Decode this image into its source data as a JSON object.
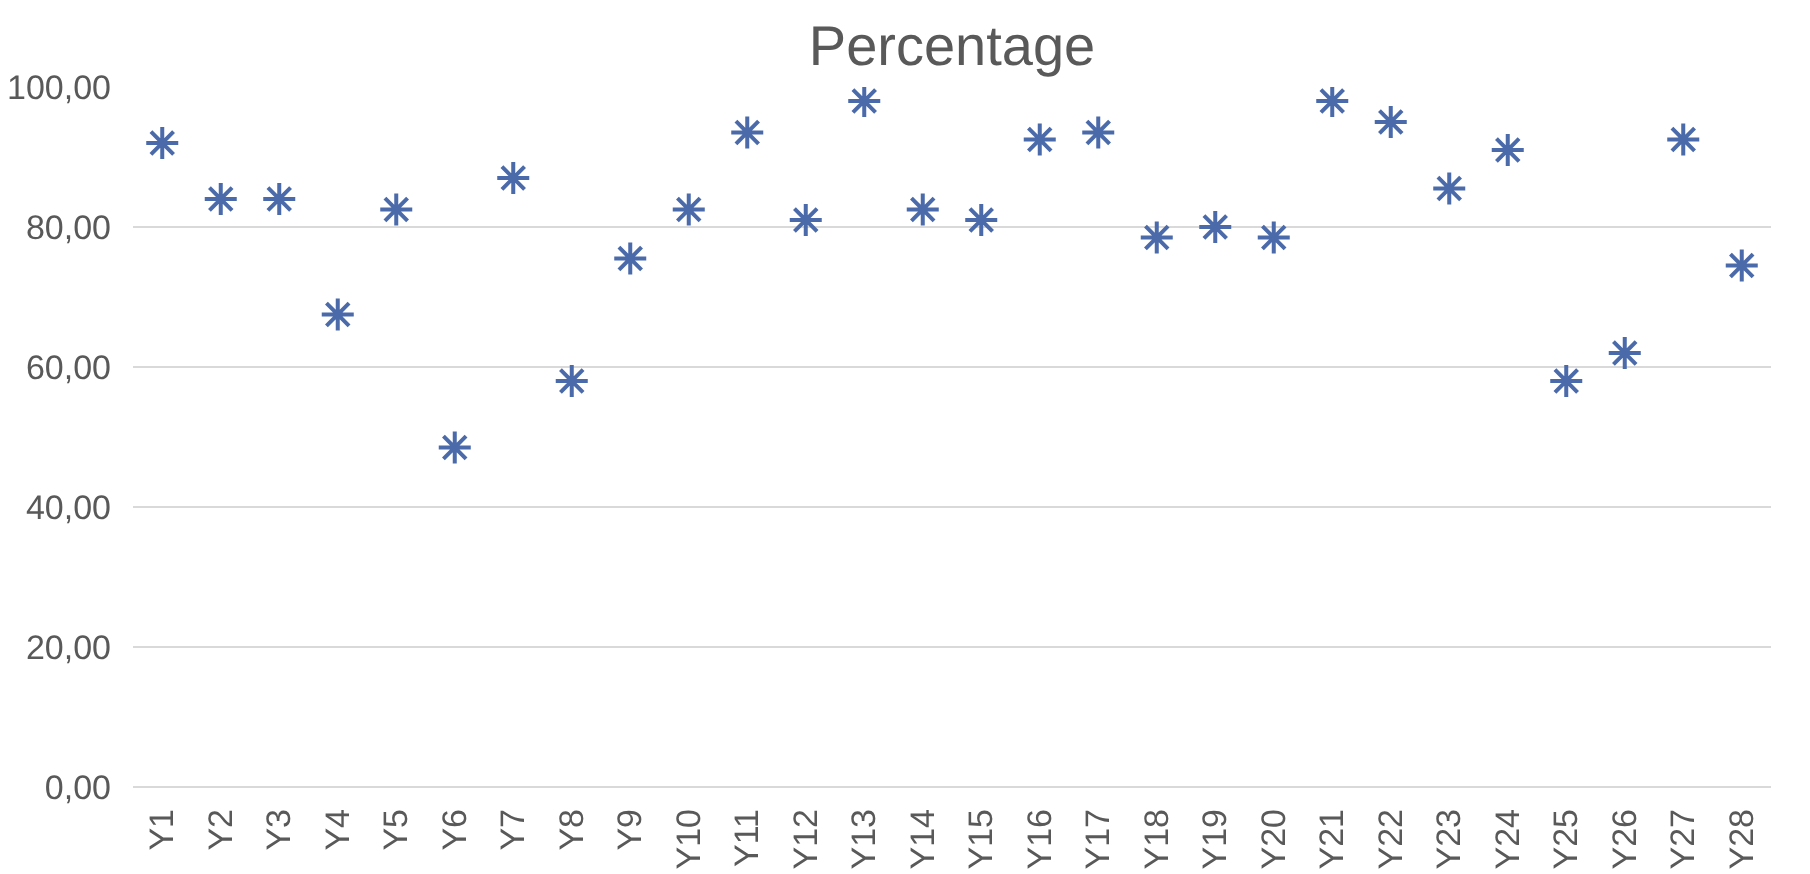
{
  "chart_data": {
    "type": "scatter",
    "title": "Percentage",
    "categories": [
      "Y1",
      "Y2",
      "Y3",
      "Y4",
      "Y5",
      "Y6",
      "Y7",
      "Y8",
      "Y9",
      "Y10",
      "Y11",
      "Y12",
      "Y13",
      "Y14",
      "Y15",
      "Y16",
      "Y17",
      "Y18",
      "Y19",
      "Y20",
      "Y21",
      "Y22",
      "Y23",
      "Y24",
      "Y25",
      "Y26",
      "Y27",
      "Y28"
    ],
    "series": [
      {
        "color": "#4a6aaa",
        "values": [
          92,
          84,
          84,
          67.5,
          82.5,
          48.5,
          87,
          58,
          75.5,
          82.5,
          93.5,
          81,
          98,
          82.5,
          81,
          92.5,
          93.5,
          78.5,
          80,
          78.5,
          98,
          95,
          85.5,
          91,
          58,
          62,
          92.5,
          74.5
        ]
      }
    ],
    "ylim": [
      0,
      100
    ],
    "yticks": [
      {
        "value": 0,
        "label": "0,00"
      },
      {
        "value": 20,
        "label": "20,00"
      },
      {
        "value": 40,
        "label": "40,00"
      },
      {
        "value": 60,
        "label": "60,00"
      },
      {
        "value": 80,
        "label": "80,00"
      },
      {
        "value": 100,
        "label": "100,00"
      }
    ],
    "grid": "y",
    "marker": "cross"
  }
}
